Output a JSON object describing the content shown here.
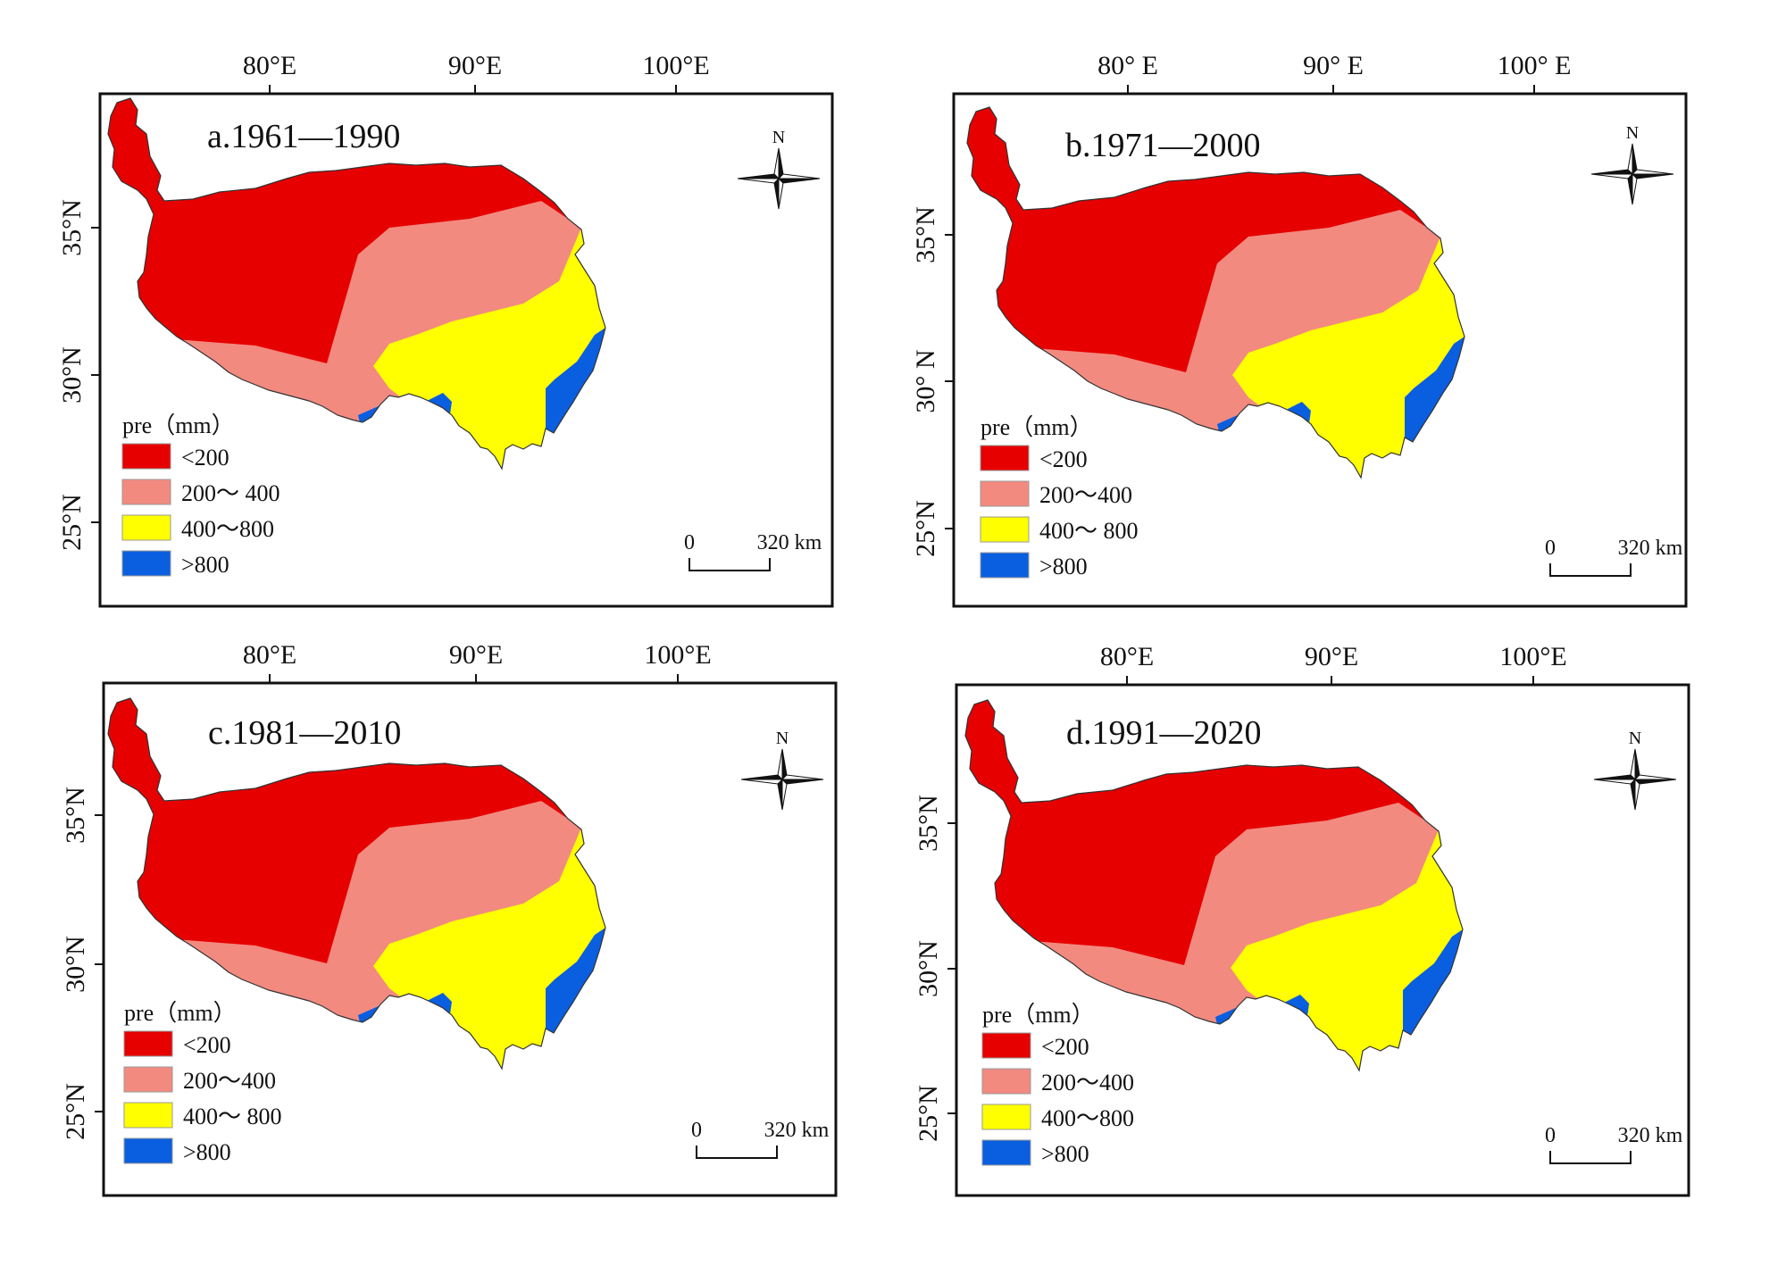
{
  "figure": {
    "legend_title": "pre（mm）",
    "north_label": "N",
    "scale": {
      "zero": "0",
      "distance": "320 km"
    }
  },
  "colors": {
    "lt200": "#e60000",
    "r200_400": "#f28a80",
    "r400_800": "#ffff00",
    "gt800": "#0a5ee0",
    "frame": "#111111"
  },
  "panels": [
    {
      "id": "a",
      "title": "a.1961—1990",
      "top_ticks": [
        "80°E",
        "90°E",
        "100°E"
      ],
      "left_ticks": [
        "35°N",
        "30°N",
        "25°N"
      ],
      "legend": [
        "<200",
        "200～ 400",
        "400～800",
        ">800"
      ]
    },
    {
      "id": "b",
      "title": "b.1971—2000",
      "top_ticks": [
        "80° E",
        "90° E",
        "100° E"
      ],
      "left_ticks": [
        "35°N",
        "30° N",
        "25°N"
      ],
      "legend": [
        "<200",
        "200～400",
        "400～ 800",
        ">800"
      ]
    },
    {
      "id": "c",
      "title": "c.1981—2010",
      "top_ticks": [
        "80°E",
        "90°E",
        "100°E"
      ],
      "left_ticks": [
        "35°N",
        "30°N",
        "25°N"
      ],
      "legend": [
        "<200",
        "200～400",
        "400～ 800",
        ">800"
      ]
    },
    {
      "id": "d",
      "title": "d.1991—2020",
      "top_ticks": [
        "80°E",
        "90°E",
        "100°E"
      ],
      "left_ticks": [
        "35°N",
        "30°N",
        "25°N"
      ],
      "legend": [
        "<200",
        "200～400",
        "400～800",
        ">800"
      ]
    }
  ]
}
